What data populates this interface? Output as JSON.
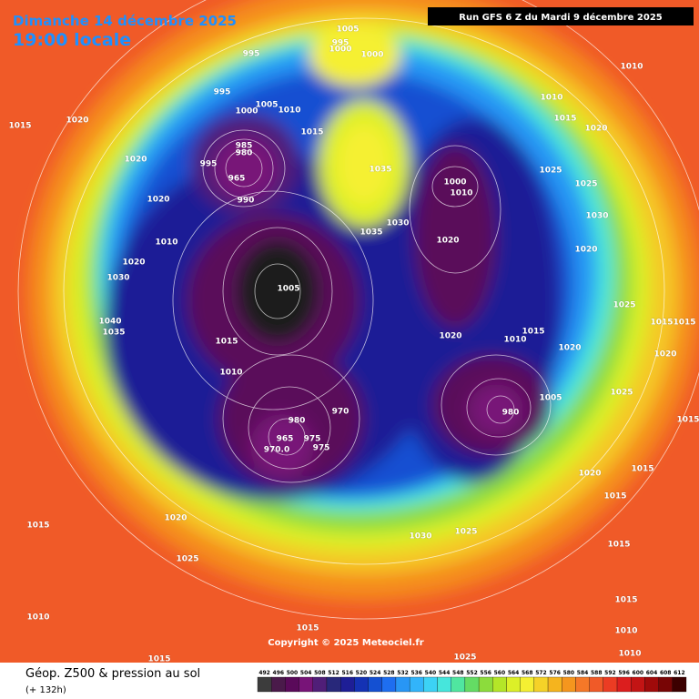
{
  "header": {
    "date": "Dimanche 14 décembre 2025",
    "time": "19:00 locale",
    "run": "Run GFS 6 Z du Mardi 9 décembre 2025"
  },
  "map": {
    "copyright": "Copyright © 2025 Meteociel.fr",
    "pressure_labels": [
      "1005",
      "995",
      "1000",
      "1000",
      "995",
      "995",
      "1000",
      "1005",
      "1010",
      "1015",
      "985",
      "980",
      "965",
      "990",
      "995",
      "1035",
      "1030",
      "1035",
      "1010",
      "1010",
      "1015",
      "1020",
      "1025",
      "1025",
      "1030",
      "1020",
      "1000",
      "1010",
      "1020",
      "1015",
      "1020",
      "1020",
      "1020",
      "1010",
      "1020",
      "1030",
      "1040",
      "1035",
      "1005",
      "1015",
      "1010",
      "1020",
      "1010",
      "1015",
      "1020",
      "1025",
      "1015",
      "1015",
      "1020",
      "1025",
      "1015",
      "980",
      "1005",
      "975",
      "975",
      "970",
      "965",
      "970.0",
      "980",
      "1020",
      "1015",
      "1015",
      "1020",
      "1015",
      "1025",
      "1010",
      "1015",
      "1015",
      "1030",
      "1025",
      "1015",
      "1015",
      "1010",
      "1010",
      "1025"
    ]
  },
  "legend": {
    "title": "Géop. Z500 & pression au sol",
    "lead_time": "(+ 132h)",
    "colorbar": {
      "values": [
        492,
        496,
        500,
        504,
        508,
        512,
        516,
        520,
        524,
        528,
        532,
        536,
        540,
        544,
        548,
        552,
        556,
        560,
        564,
        568,
        572,
        576,
        580,
        584,
        588,
        592,
        596,
        600,
        604,
        608,
        612
      ],
      "colors": [
        "#3c3c3c",
        "#4a1a4a",
        "#5a0a5a",
        "#781478",
        "#501e78",
        "#28287a",
        "#1e1e96",
        "#1432b4",
        "#1450d2",
        "#1e6ef0",
        "#2896f5",
        "#32b4fa",
        "#3cd2f5",
        "#46e6dc",
        "#50e6a0",
        "#64dc64",
        "#8cdc3c",
        "#b4e628",
        "#dcf028",
        "#f5f032",
        "#f5d228",
        "#f5b41e",
        "#f5961e",
        "#f57828",
        "#f05a28",
        "#eb3c23",
        "#dc1e1e",
        "#c31414",
        "#a00a0a",
        "#780505",
        "#3c0000"
      ]
    }
  }
}
